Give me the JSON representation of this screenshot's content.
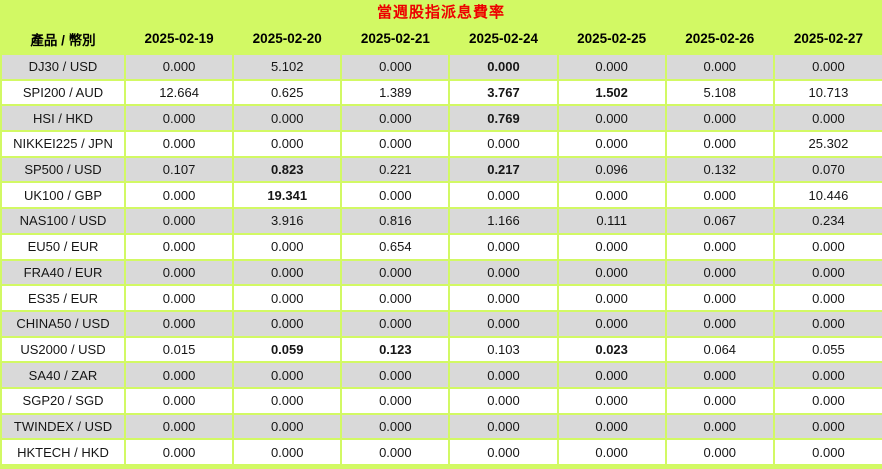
{
  "title": "當週股指派息費率",
  "colors": {
    "background": "#d2f964",
    "title": "#ee0000",
    "row_odd": "#d9d9d9",
    "row_even": "#ffffff",
    "text": "#161616"
  },
  "chart_data": {
    "type": "table",
    "title": "當週股指派息費率",
    "columns": [
      "產品 / 幣別",
      "2025-02-19",
      "2025-02-20",
      "2025-02-21",
      "2025-02-24",
      "2025-02-25",
      "2025-02-26",
      "2025-02-27"
    ],
    "rows": [
      {
        "label": "DJ30 / USD",
        "values": [
          "0.000",
          "5.102",
          "0.000",
          "0.000",
          "0.000",
          "0.000",
          "0.000"
        ],
        "bold": [
          3
        ]
      },
      {
        "label": "SPI200 / AUD",
        "values": [
          "12.664",
          "0.625",
          "1.389",
          "3.767",
          "1.502",
          "5.108",
          "10.713"
        ],
        "bold": [
          3,
          4
        ]
      },
      {
        "label": "HSI / HKD",
        "values": [
          "0.000",
          "0.000",
          "0.000",
          "0.769",
          "0.000",
          "0.000",
          "0.000"
        ],
        "bold": [
          3
        ]
      },
      {
        "label": "NIKKEI225 / JPN",
        "values": [
          "0.000",
          "0.000",
          "0.000",
          "0.000",
          "0.000",
          "0.000",
          "25.302"
        ],
        "bold": []
      },
      {
        "label": "SP500 / USD",
        "values": [
          "0.107",
          "0.823",
          "0.221",
          "0.217",
          "0.096",
          "0.132",
          "0.070"
        ],
        "bold": [
          1,
          3
        ]
      },
      {
        "label": "UK100 / GBP",
        "values": [
          "0.000",
          "19.341",
          "0.000",
          "0.000",
          "0.000",
          "0.000",
          "10.446"
        ],
        "bold": [
          1
        ]
      },
      {
        "label": "NAS100 / USD",
        "values": [
          "0.000",
          "3.916",
          "0.816",
          "1.166",
          "0.111",
          "0.067",
          "0.234"
        ],
        "bold": []
      },
      {
        "label": "EU50 / EUR",
        "values": [
          "0.000",
          "0.000",
          "0.654",
          "0.000",
          "0.000",
          "0.000",
          "0.000"
        ],
        "bold": []
      },
      {
        "label": "FRA40 / EUR",
        "values": [
          "0.000",
          "0.000",
          "0.000",
          "0.000",
          "0.000",
          "0.000",
          "0.000"
        ],
        "bold": []
      },
      {
        "label": "ES35 / EUR",
        "values": [
          "0.000",
          "0.000",
          "0.000",
          "0.000",
          "0.000",
          "0.000",
          "0.000"
        ],
        "bold": []
      },
      {
        "label": "CHINA50 / USD",
        "values": [
          "0.000",
          "0.000",
          "0.000",
          "0.000",
          "0.000",
          "0.000",
          "0.000"
        ],
        "bold": []
      },
      {
        "label": "US2000 / USD",
        "values": [
          "0.015",
          "0.059",
          "0.123",
          "0.103",
          "0.023",
          "0.064",
          "0.055"
        ],
        "bold": [
          1,
          2,
          4
        ]
      },
      {
        "label": "SA40 / ZAR",
        "values": [
          "0.000",
          "0.000",
          "0.000",
          "0.000",
          "0.000",
          "0.000",
          "0.000"
        ],
        "bold": []
      },
      {
        "label": "SGP20 / SGD",
        "values": [
          "0.000",
          "0.000",
          "0.000",
          "0.000",
          "0.000",
          "0.000",
          "0.000"
        ],
        "bold": []
      },
      {
        "label": "TWINDEX / USD",
        "values": [
          "0.000",
          "0.000",
          "0.000",
          "0.000",
          "0.000",
          "0.000",
          "0.000"
        ],
        "bold": []
      },
      {
        "label": "HKTECH / HKD",
        "values": [
          "0.000",
          "0.000",
          "0.000",
          "0.000",
          "0.000",
          "0.000",
          "0.000"
        ],
        "bold": []
      }
    ]
  }
}
